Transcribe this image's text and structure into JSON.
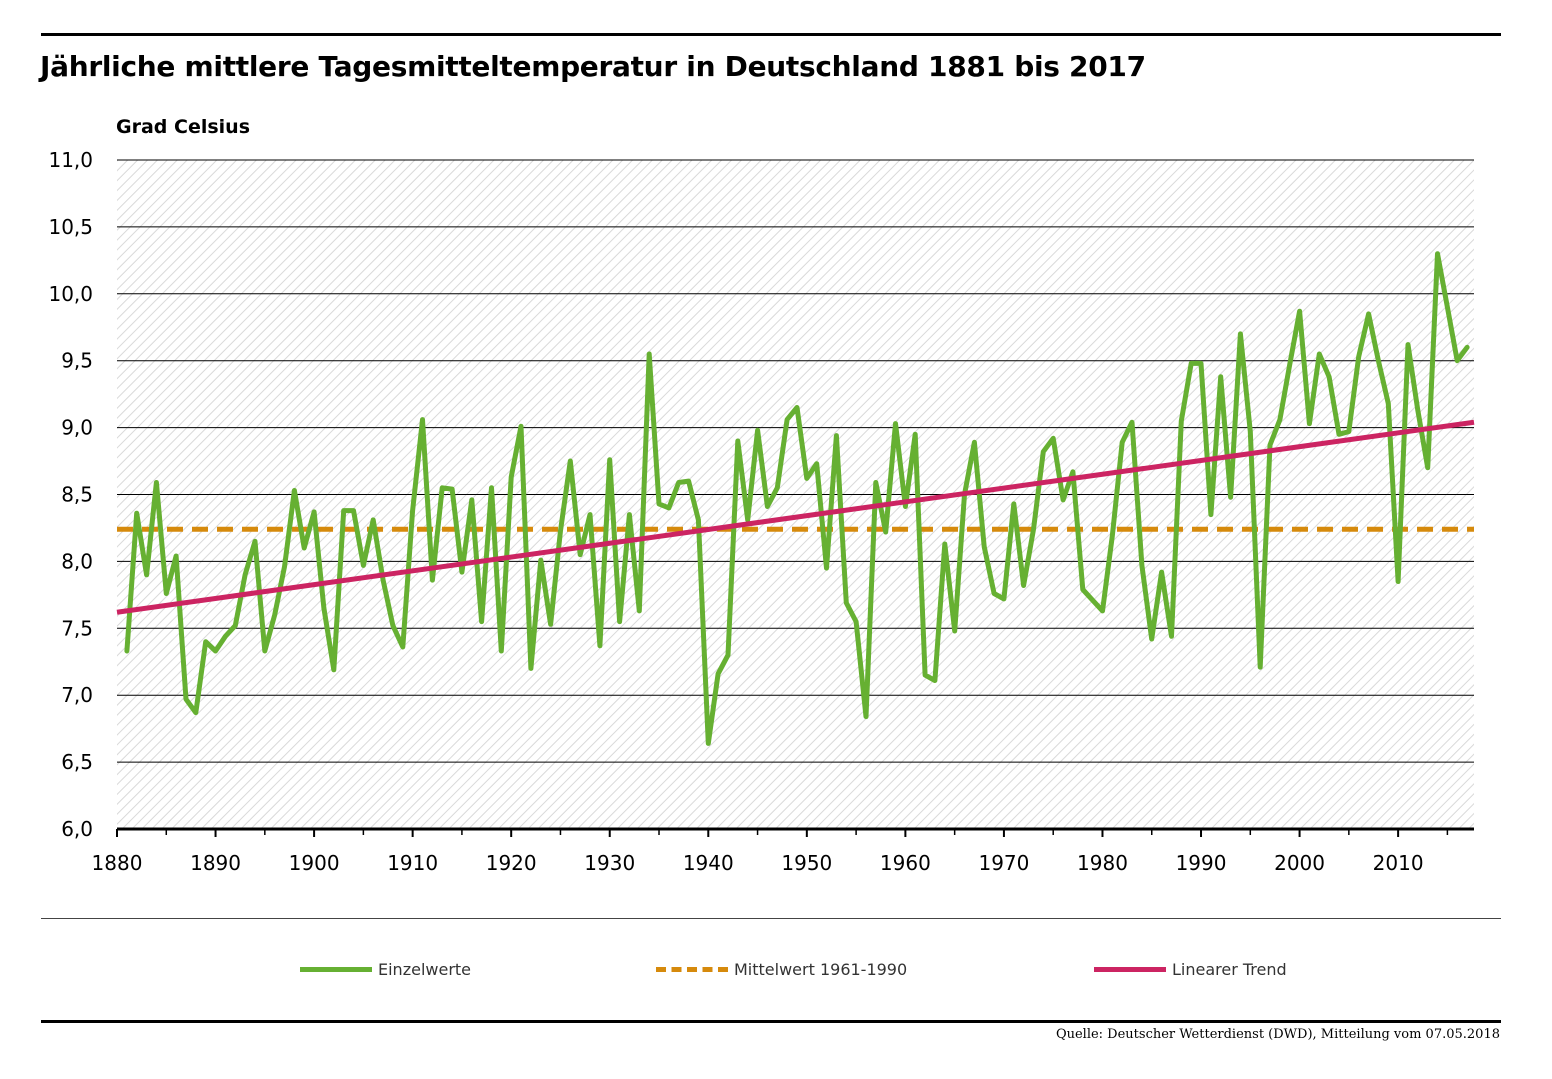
{
  "title": "Jährliche mittlere Tagesmitteltemperatur in Deutschland 1881 bis 2017",
  "source": "Quelle: Deutscher Wetterdienst (DWD), Mitteilung vom 07.05.2018",
  "colors": {
    "einzelwerte": "#66b032",
    "mittelwert": "#d68a0c",
    "trend": "#cc2462",
    "grid": "#000000",
    "hatch": "#d9d9d9"
  },
  "legend": [
    {
      "key": "einzelwerte",
      "label": "Einzelwerte",
      "style": "solid"
    },
    {
      "key": "mittelwert",
      "label": "Mittelwert 1961-1990",
      "style": "dashed"
    },
    {
      "key": "trend",
      "label": "Linearer Trend",
      "style": "solid"
    }
  ],
  "chart_data": {
    "type": "line",
    "title": "Jährliche mittlere Tagesmitteltemperatur in Deutschland 1881 bis 2017",
    "ylabel": "Grad Celsius",
    "xlabel": "",
    "xlim": [
      1880,
      2017.7
    ],
    "ylim": [
      6.0,
      11.0
    ],
    "grid": true,
    "legend_position": "bottom",
    "x_ticks": [
      1880,
      1890,
      1900,
      1910,
      1920,
      1930,
      1940,
      1950,
      1960,
      1970,
      1980,
      1990,
      2000,
      2010
    ],
    "y_ticks": [
      6.0,
      6.5,
      7.0,
      7.5,
      8.0,
      8.5,
      9.0,
      9.5,
      10.0,
      10.5,
      11.0
    ],
    "y_tick_labels": [
      "6,0",
      "6,5",
      "7,0",
      "7,5",
      "8,0",
      "8,5",
      "9,0",
      "9,5",
      "10,0",
      "10,5",
      "11,0"
    ],
    "series": [
      {
        "name": "Einzelwerte",
        "x_start": 1881,
        "x_end": 2017,
        "values": [
          7.33,
          8.36,
          7.9,
          8.59,
          7.76,
          8.04,
          6.97,
          6.87,
          7.4,
          7.33,
          7.44,
          7.52,
          7.9,
          8.15,
          7.33,
          7.6,
          7.96,
          8.53,
          8.1,
          8.37,
          7.65,
          7.19,
          8.38,
          8.38,
          7.97,
          8.31,
          7.86,
          7.52,
          7.36,
          8.38,
          9.06,
          7.86,
          8.55,
          8.54,
          7.92,
          8.46,
          7.55,
          8.55,
          7.33,
          8.63,
          9.01,
          7.2,
          8.01,
          7.53,
          8.23,
          8.75,
          8.05,
          8.35,
          7.37,
          8.76,
          7.55,
          8.35,
          7.63,
          9.55,
          8.43,
          8.4,
          8.59,
          8.6,
          8.31,
          6.64,
          7.16,
          7.3,
          8.9,
          8.31,
          8.98,
          8.41,
          8.55,
          9.06,
          9.15,
          8.62,
          8.73,
          7.95,
          8.94,
          7.69,
          7.55,
          6.84,
          8.59,
          8.22,
          9.03,
          8.41,
          8.95,
          7.15,
          7.11,
          8.13,
          7.48,
          8.5,
          8.89,
          8.11,
          7.76,
          7.72,
          8.43,
          7.82,
          8.24,
          8.82,
          8.92,
          8.46,
          8.67,
          7.79,
          7.71,
          7.63,
          8.19,
          8.89,
          9.04,
          7.97,
          7.42,
          7.92,
          7.44,
          9.05,
          9.48,
          9.48,
          8.35,
          9.38,
          8.48,
          9.7,
          8.97,
          7.21,
          8.87,
          9.06,
          9.47,
          9.87,
          9.03,
          9.55,
          9.38,
          8.95,
          8.97,
          9.53,
          9.85,
          9.5,
          9.18,
          7.85,
          9.62,
          9.13,
          8.7,
          10.3,
          9.9,
          9.5,
          9.6
        ]
      },
      {
        "name": "Mittelwert 1961-1990",
        "x": [
          1880,
          2017.7
        ],
        "values": [
          8.24,
          8.24
        ]
      },
      {
        "name": "Linearer Trend",
        "x": [
          1880,
          2017.7
        ],
        "values": [
          7.62,
          9.04
        ]
      }
    ]
  }
}
